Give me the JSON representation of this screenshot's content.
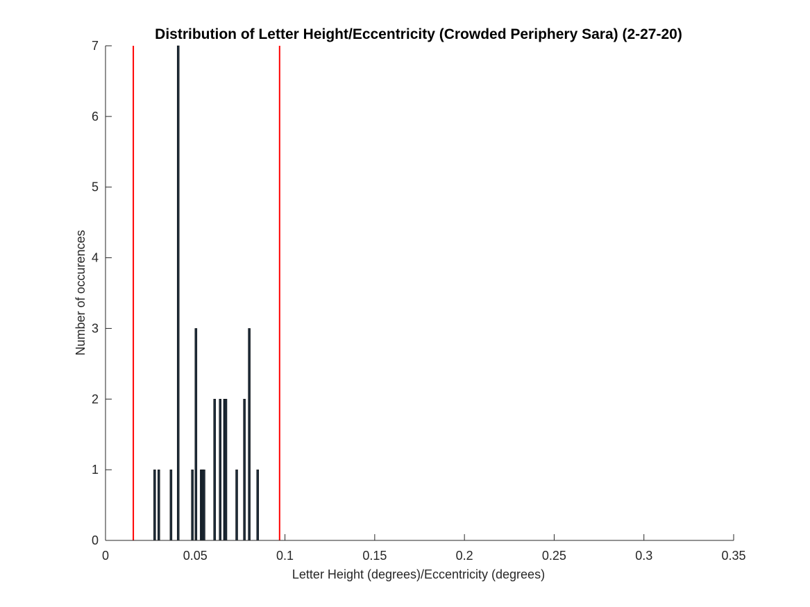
{
  "chart_data": {
    "type": "bar",
    "title": "Distribution of Letter Height/Eccentricity (Crowded Periphery Sara) (2-27-20)",
    "xlabel": "Letter Height (degrees)/Eccentricity (degrees)",
    "ylabel": "Number of occurences",
    "xlim": [
      0,
      0.35
    ],
    "ylim": [
      0,
      7
    ],
    "xticks": [
      0,
      0.05,
      0.1,
      0.15,
      0.2,
      0.25,
      0.3,
      0.35
    ],
    "xtick_labels": [
      "0",
      "0.05",
      "0.1",
      "0.15",
      "0.2",
      "0.25",
      "0.3",
      "0.35"
    ],
    "yticks": [
      0,
      1,
      2,
      3,
      4,
      5,
      6,
      7
    ],
    "ytick_labels": [
      "0",
      "1",
      "2",
      "3",
      "4",
      "5",
      "6",
      "7"
    ],
    "grid": false,
    "bars": [
      {
        "x": 0.0274,
        "count": 1
      },
      {
        "x": 0.0297,
        "count": 1
      },
      {
        "x": 0.0365,
        "count": 1
      },
      {
        "x": 0.0405,
        "count": 7
      },
      {
        "x": 0.0484,
        "count": 1
      },
      {
        "x": 0.0504,
        "count": 3
      },
      {
        "x": 0.0533,
        "count": 1
      },
      {
        "x": 0.0541,
        "count": 1
      },
      {
        "x": 0.0549,
        "count": 1
      },
      {
        "x": 0.0608,
        "count": 2
      },
      {
        "x": 0.0639,
        "count": 2
      },
      {
        "x": 0.0663,
        "count": 2
      },
      {
        "x": 0.0671,
        "count": 2
      },
      {
        "x": 0.0731,
        "count": 1
      },
      {
        "x": 0.0774,
        "count": 2
      },
      {
        "x": 0.0801,
        "count": 3
      },
      {
        "x": 0.0848,
        "count": 1
      }
    ],
    "vertical_lines": [
      {
        "x": 0.0155,
        "color": "#ff0000"
      },
      {
        "x": 0.097,
        "color": "#ff0000"
      }
    ],
    "bar_color": "#1f2d3a",
    "axis_color": "#262626"
  }
}
